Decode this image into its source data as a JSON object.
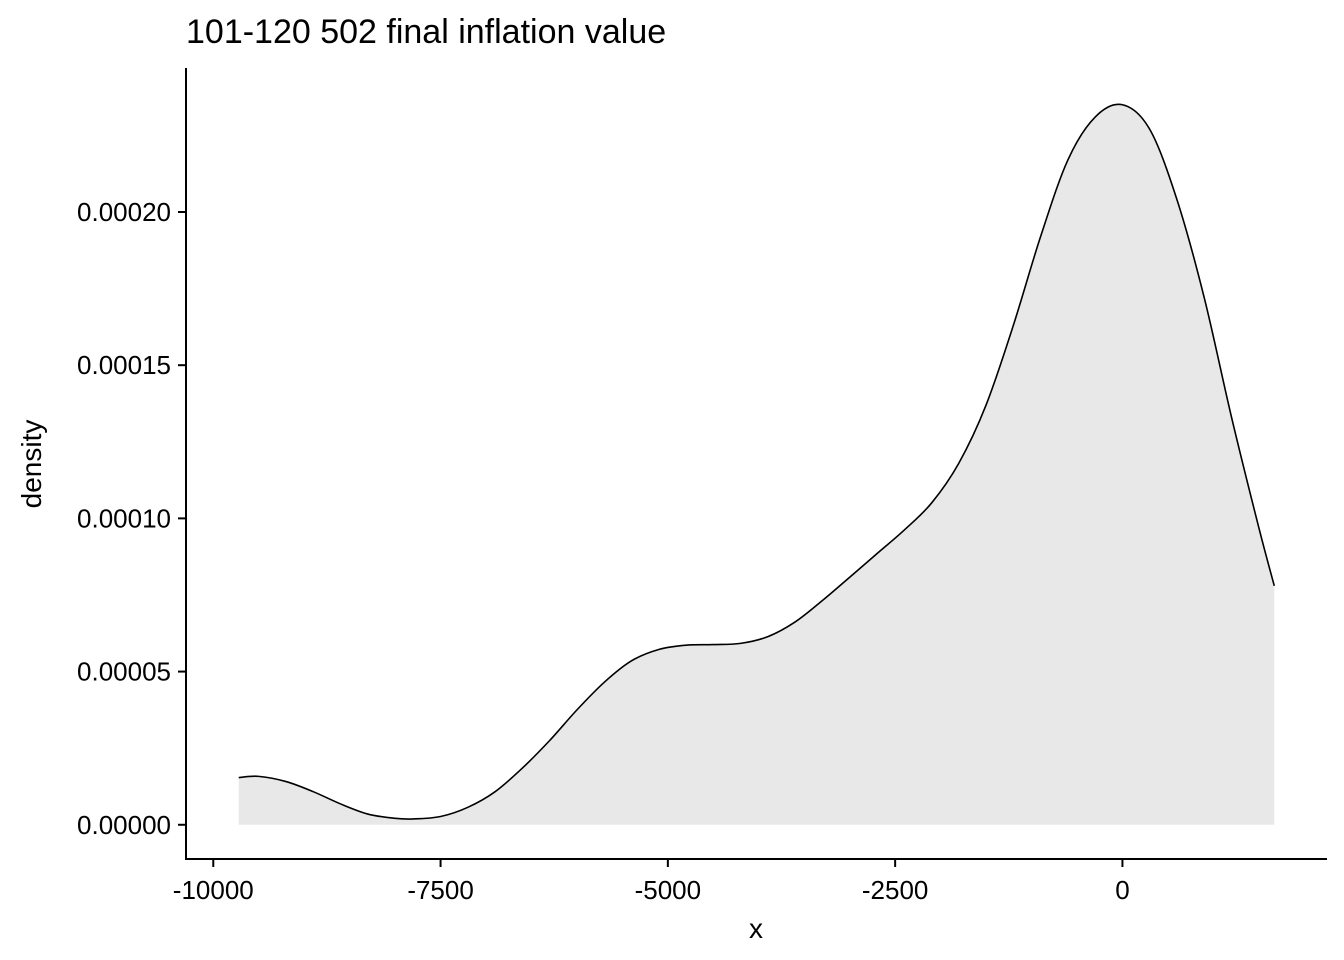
{
  "chart_data": {
    "type": "area",
    "title": "101-120 502 final inflation value",
    "xlabel": "x",
    "ylabel": "density",
    "xlim": [
      -10300,
      2250
    ],
    "ylim": [
      -1.15e-05,
      0.000247
    ],
    "x_ticks": [
      {
        "value": -10000,
        "label": "-10000"
      },
      {
        "value": -7500,
        "label": "-7500"
      },
      {
        "value": -5000,
        "label": "-5000"
      },
      {
        "value": -2500,
        "label": "-2500"
      },
      {
        "value": 0,
        "label": "0"
      }
    ],
    "y_ticks": [
      {
        "value": 0,
        "label": "0.00000"
      },
      {
        "value": 5e-05,
        "label": "0.00005"
      },
      {
        "value": 0.0001,
        "label": "0.00010"
      },
      {
        "value": 0.00015,
        "label": "0.00015"
      },
      {
        "value": 0.0002,
        "label": "0.00020"
      }
    ],
    "grid": false,
    "fill_color": "#e8e8e8",
    "line_color": "#000000",
    "series": [
      {
        "x": [
          -9720,
          -9500,
          -9200,
          -8900,
          -8600,
          -8300,
          -8000,
          -7800,
          -7500,
          -7200,
          -6900,
          -6600,
          -6300,
          -6000,
          -5700,
          -5400,
          -5100,
          -4800,
          -4500,
          -4200,
          -3900,
          -3600,
          -3300,
          -3000,
          -2700,
          -2400,
          -2100,
          -1800,
          -1500,
          -1200,
          -900,
          -600,
          -300,
          0,
          300,
          600,
          900,
          1200,
          1500,
          1670
        ],
        "y": [
          1.54e-05,
          1.58e-05,
          1.41e-05,
          1.08e-05,
          6.8e-06,
          3.5e-06,
          2.1e-06,
          1.9e-06,
          2.7e-06,
          5.7e-06,
          1.08e-05,
          1.85e-05,
          2.75e-05,
          3.75e-05,
          4.65e-05,
          5.35e-05,
          5.72e-05,
          5.86e-05,
          5.88e-05,
          5.92e-05,
          6.14e-05,
          6.62e-05,
          7.32e-05,
          8.08e-05,
          8.85e-05,
          9.62e-05,
          0.000105,
          0.000118,
          0.000137,
          0.000163,
          0.000192,
          0.000217,
          0.000231,
          0.000235,
          0.000227,
          0.000204,
          0.000172,
          0.000133,
          9.7e-05,
          7.8e-05
        ]
      }
    ]
  }
}
